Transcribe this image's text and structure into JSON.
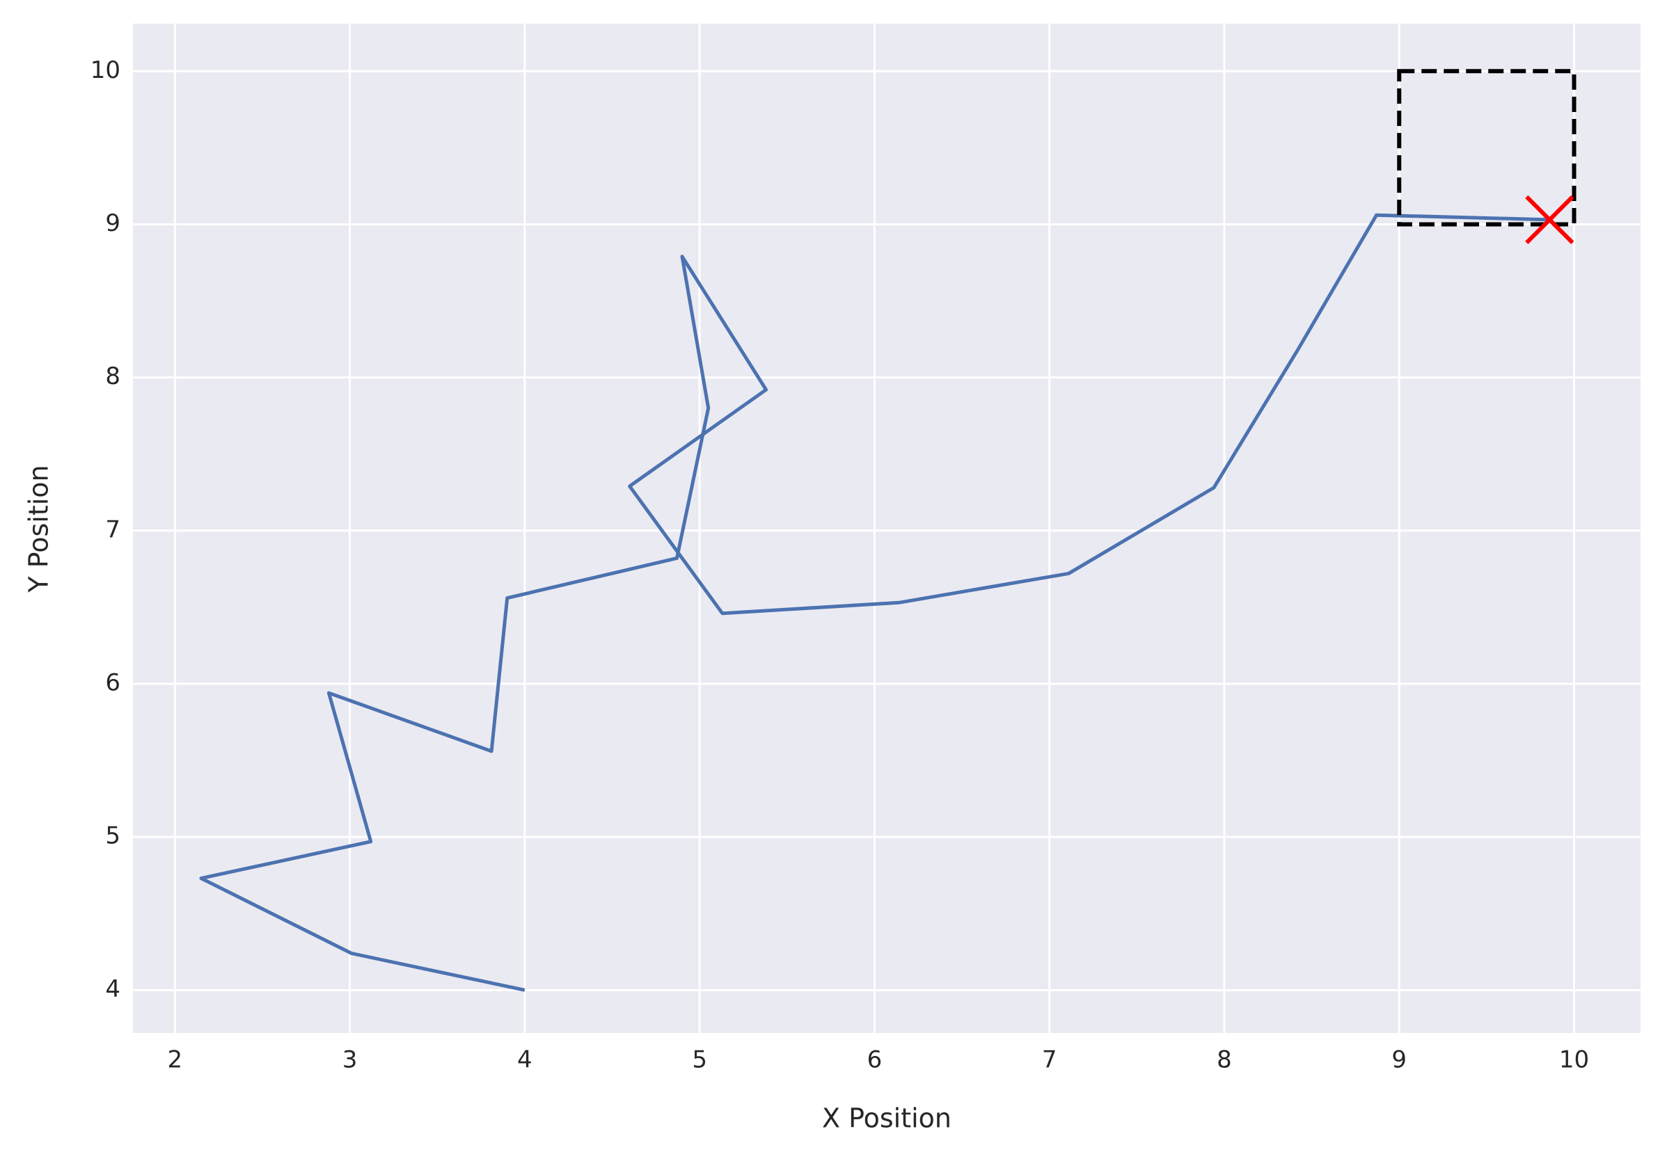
{
  "chart_data": {
    "type": "line",
    "xlabel": "X Position",
    "ylabel": "Y Position",
    "series": [
      {
        "color": "#4c72b0",
        "x": [
          4.0,
          3.01,
          2.15,
          3.12,
          2.88,
          3.81,
          3.9,
          4.87,
          5.05,
          4.9,
          5.38,
          4.6,
          5.13,
          6.14,
          7.11,
          7.94,
          8.42,
          8.87,
          9.86
        ],
        "values": [
          4.0,
          4.24,
          4.73,
          4.97,
          5.94,
          5.56,
          6.56,
          6.82,
          7.8,
          8.79,
          7.92,
          7.29,
          6.46,
          6.53,
          6.72,
          7.28,
          8.18,
          9.06,
          9.03
        ]
      }
    ],
    "target": {
      "x": [
        9,
        10
      ],
      "y": [
        9,
        10
      ],
      "color": "#000000",
      "dashed": true
    },
    "goal": {
      "x": 9.86,
      "y": 9.03,
      "color": "#ff0000",
      "marker": "x"
    },
    "xlim": [
      1.76,
      10.38
    ],
    "ylim": [
      3.72,
      10.31
    ],
    "xticks": [
      2,
      3,
      4,
      5,
      6,
      7,
      8,
      9,
      10
    ],
    "yticks": [
      4,
      5,
      6,
      7,
      8,
      9,
      10
    ],
    "grid": true
  }
}
